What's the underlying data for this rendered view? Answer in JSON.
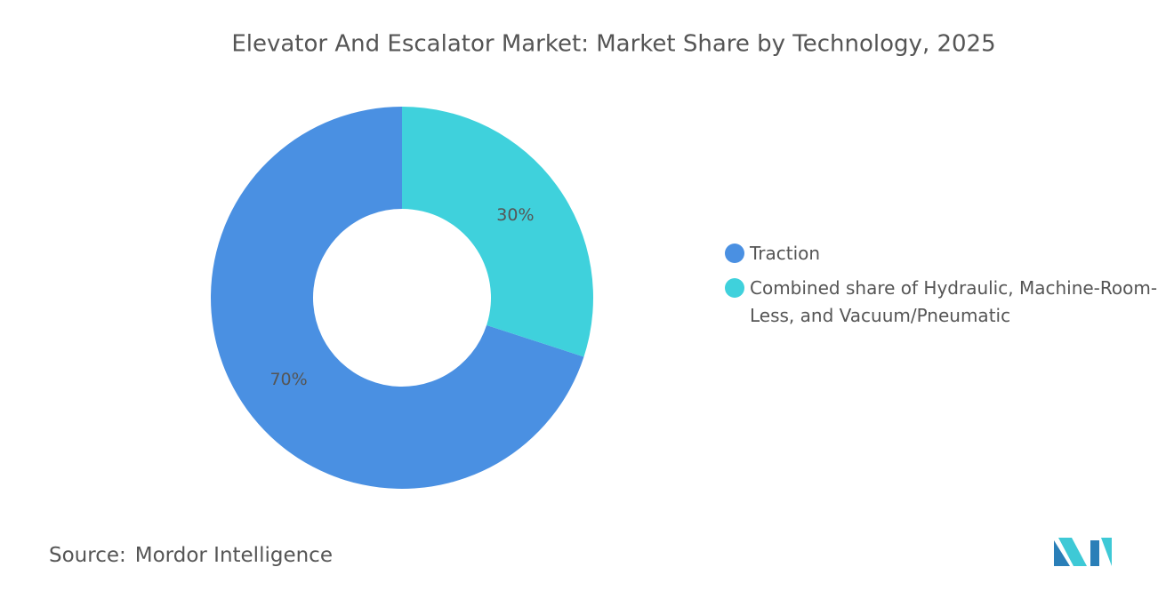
{
  "chart_data": {
    "type": "donut",
    "title": "Elevator And Escalator Market: Market Share by Technology, 2025",
    "categories": [
      "Traction",
      "Combined share of Hydraulic, Machine-Room-Less, and Vacuum/Pneumatic"
    ],
    "values": [
      70,
      30
    ],
    "value_labels": [
      "70%",
      "30%"
    ],
    "colors": [
      "#4a90e2",
      "#3fd1dc"
    ],
    "legend": "right"
  },
  "source_label": "Source:",
  "source": "Mordor Intelligence"
}
